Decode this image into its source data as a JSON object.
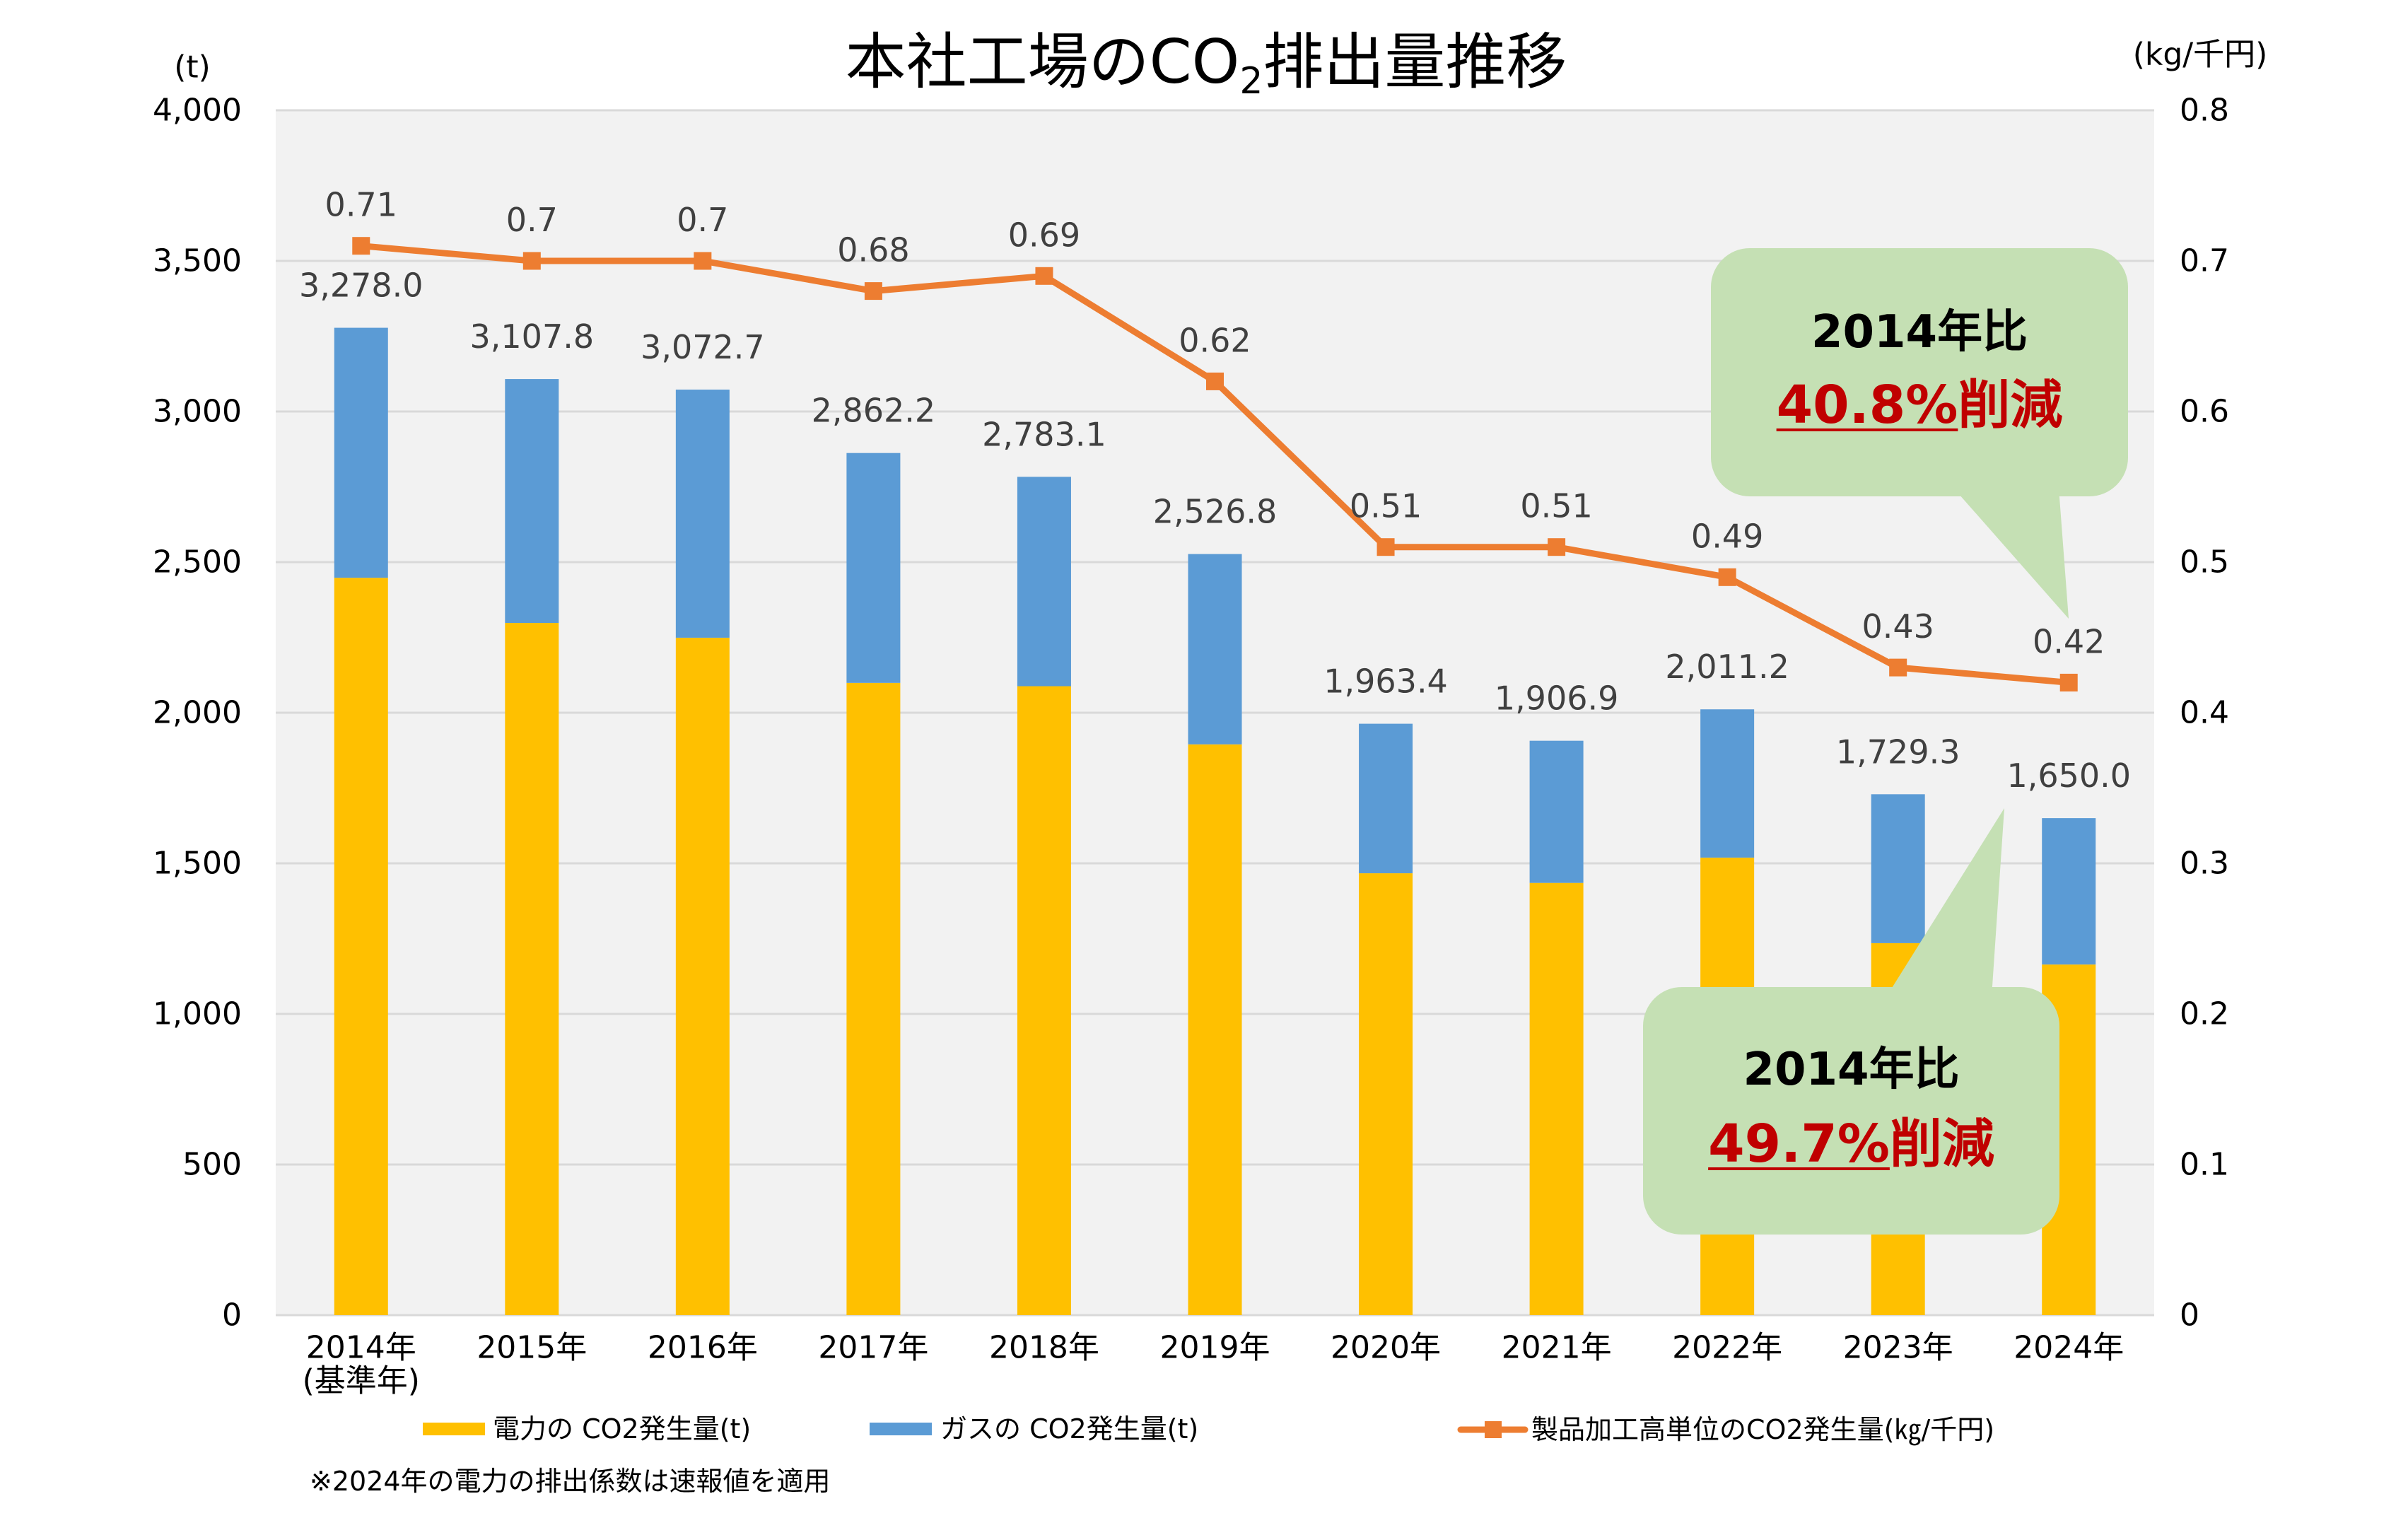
{
  "chart_data": {
    "type": "bar",
    "subtype": "stacked-bar-with-line",
    "title": "本社工場のCO₂排出量推移",
    "title_parts": [
      "本社工場のCO",
      "2",
      "排出量推移"
    ],
    "categories": [
      "2014年",
      "2015年",
      "2016年",
      "2017年",
      "2018年",
      "2019年",
      "2020年",
      "2021年",
      "2022年",
      "2023年",
      "2024年"
    ],
    "category_notes": [
      "(基準年)",
      "",
      "",
      "",
      "",
      "",
      "",
      "",
      "",
      "",
      ""
    ],
    "xlabel": "",
    "y_left": {
      "title": "(t)",
      "min": 0,
      "max": 4000,
      "step": 500,
      "tick_labels": [
        "0",
        "500",
        "1,000",
        "1,500",
        "2,000",
        "2,500",
        "3,000",
        "3,500",
        "4,000"
      ]
    },
    "y_right": {
      "title": "(kg/千円)",
      "min": 0,
      "max": 0.8,
      "step": 0.1,
      "tick_labels": [
        "0",
        "0.1",
        "0.2",
        "0.3",
        "0.4",
        "0.5",
        "0.6",
        "0.7",
        "0.8"
      ]
    },
    "grid": true,
    "legend_position": "bottom",
    "series": [
      {
        "name": "電力の CO2発生量(t)",
        "type": "bar",
        "stack": "total",
        "axis": "left",
        "color": "#FFC000",
        "values": [
          2448,
          2298,
          2249,
          2099,
          2088,
          1895,
          1467,
          1435,
          1519,
          1235,
          1164
        ]
      },
      {
        "name": "ガスの CO2発生量(t)",
        "type": "bar",
        "stack": "total",
        "axis": "left",
        "color": "#5B9BD5",
        "values": [
          830.0,
          809.8,
          823.7,
          763.2,
          695.1,
          631.8,
          496.4,
          471.9,
          492.2,
          494.3,
          486.0
        ]
      },
      {
        "name": "製品加工高単位のCO2発生量(㎏/千円)",
        "type": "line",
        "axis": "right",
        "color": "#ED7D31",
        "marker": "square",
        "values": [
          0.71,
          0.7,
          0.7,
          0.68,
          0.69,
          0.62,
          0.51,
          0.51,
          0.49,
          0.43,
          0.42
        ],
        "labels": [
          "0.71",
          "0.7",
          "0.7",
          "0.68",
          "0.69",
          "0.62",
          "0.51",
          "0.51",
          "0.49",
          "0.43",
          "0.42"
        ]
      }
    ],
    "totals": [
      3278.0,
      3107.8,
      3072.7,
      2862.2,
      2783.1,
      2526.8,
      1963.4,
      1906.9,
      2011.2,
      1729.3,
      1650.0
    ],
    "total_labels": [
      "3,278.0",
      "3,107.8",
      "3,072.7",
      "2,862.2",
      "2,783.1",
      "2,526.8",
      "1,963.4",
      "1,906.9",
      "2,011.2",
      "1,729.3",
      "1,650.0"
    ],
    "annotations": [
      {
        "points_to": {
          "series": 2,
          "category": "2024年"
        },
        "line1": "2014年比",
        "highlight": "40.8%",
        "suffix": "削減"
      },
      {
        "points_to": {
          "series": "totals",
          "category": "2024年"
        },
        "line1": "2014年比",
        "highlight": "49.7%",
        "suffix": "削減"
      }
    ],
    "footnote": "※2024年の電力の排出係数は速報値を適用"
  },
  "colors": {
    "plot_background": "#F2F2F2",
    "gridline": "#D9D9D9",
    "data_label": "#404040",
    "callout_fill": "#C5E0B4",
    "callout_highlight": "#C00000"
  }
}
